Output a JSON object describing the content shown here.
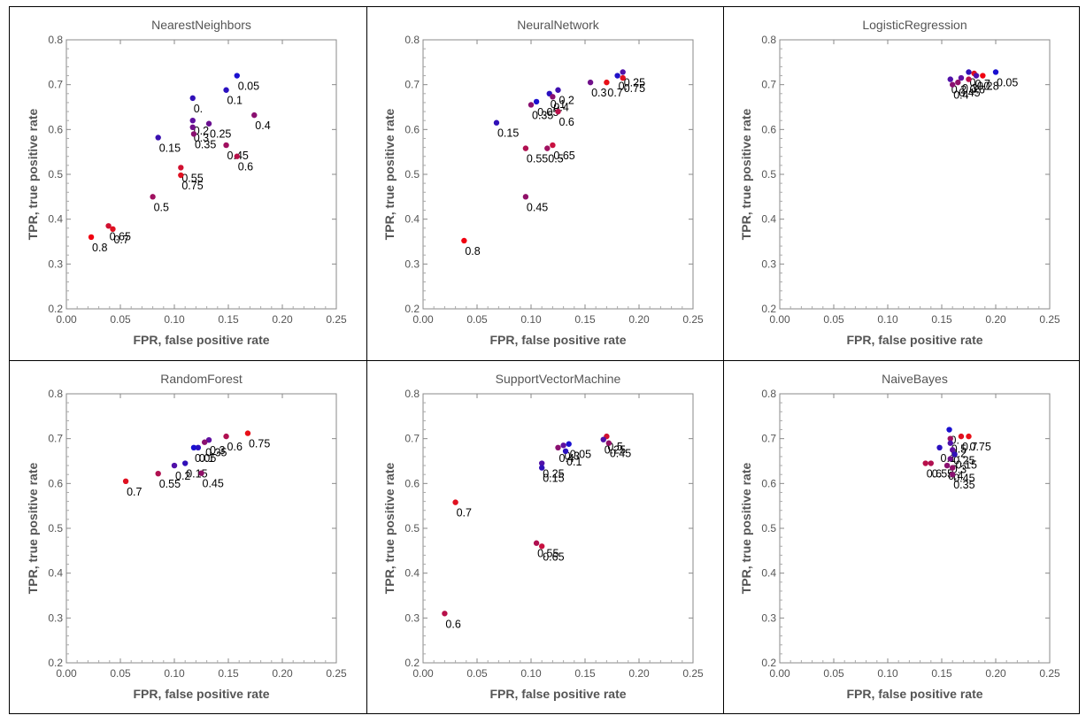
{
  "chart_data": [
    {
      "type": "scatter",
      "title": "NearestNeighbors",
      "xlabel": "FPR, false positive rate",
      "ylabel": "TPR, true positive rate",
      "xlim": [
        0.0,
        0.25
      ],
      "ylim": [
        0.2,
        0.8
      ],
      "xticks": [
        "0.00",
        "0.05",
        "0.10",
        "0.15",
        "0.20",
        "0.25"
      ],
      "yticks": [
        "0.2",
        "0.3",
        "0.4",
        "0.5",
        "0.6",
        "0.7",
        "0.8"
      ],
      "grid": false,
      "points": [
        {
          "x": 0.158,
          "y": 0.72,
          "label": "0.05",
          "color": "#1a10d0"
        },
        {
          "x": 0.148,
          "y": 0.688,
          "label": "0.1",
          "color": "#2a10c0"
        },
        {
          "x": 0.117,
          "y": 0.67,
          "label": "0.",
          "color": "#3010b8"
        },
        {
          "x": 0.117,
          "y": 0.62,
          "label": "0.2",
          "color": "#6010a0"
        },
        {
          "x": 0.132,
          "y": 0.613,
          "label": "0.25",
          "color": "#6a1090"
        },
        {
          "x": 0.174,
          "y": 0.632,
          "label": "0.4",
          "color": "#8a1070"
        },
        {
          "x": 0.117,
          "y": 0.605,
          "label": "0.3",
          "color": "#70108a"
        },
        {
          "x": 0.118,
          "y": 0.59,
          "label": "0.35",
          "color": "#8a1070"
        },
        {
          "x": 0.085,
          "y": 0.582,
          "label": "0.15",
          "color": "#3a10b0"
        },
        {
          "x": 0.148,
          "y": 0.565,
          "label": "0.45",
          "color": "#a01060"
        },
        {
          "x": 0.158,
          "y": 0.54,
          "label": "0.6",
          "color": "#b8104a"
        },
        {
          "x": 0.106,
          "y": 0.515,
          "label": "0.55",
          "color": "#d01030"
        },
        {
          "x": 0.106,
          "y": 0.498,
          "label": "0.75",
          "color": "#e01020"
        },
        {
          "x": 0.08,
          "y": 0.45,
          "label": "0.5",
          "color": "#a01060"
        },
        {
          "x": 0.039,
          "y": 0.385,
          "label": "0.65",
          "color": "#d01030"
        },
        {
          "x": 0.043,
          "y": 0.378,
          "label": "0.7",
          "color": "#e01020"
        },
        {
          "x": 0.023,
          "y": 0.36,
          "label": "0.8",
          "color": "#f00010"
        }
      ]
    },
    {
      "type": "scatter",
      "title": "NeuralNetwork",
      "xlabel": "FPR, false positive rate",
      "ylabel": "TPR, true positive rate",
      "xlim": [
        0.0,
        0.25
      ],
      "ylim": [
        0.2,
        0.8
      ],
      "xticks": [
        "0.00",
        "0.05",
        "0.10",
        "0.15",
        "0.20",
        "0.25"
      ],
      "yticks": [
        "0.2",
        "0.3",
        "0.4",
        "0.5",
        "0.6",
        "0.7",
        "0.8"
      ],
      "grid": false,
      "points": [
        {
          "x": 0.185,
          "y": 0.728,
          "label": "0.25",
          "color": "#5010a8"
        },
        {
          "x": 0.18,
          "y": 0.72,
          "label": "0.",
          "color": "#2010c8"
        },
        {
          "x": 0.185,
          "y": 0.715,
          "label": "0.75",
          "color": "#e01020"
        },
        {
          "x": 0.17,
          "y": 0.705,
          "label": "0.7",
          "color": "#e81018"
        },
        {
          "x": 0.155,
          "y": 0.705,
          "label": "0.3",
          "color": "#70108a"
        },
        {
          "x": 0.125,
          "y": 0.688,
          "label": "0.2",
          "color": "#4010b0"
        },
        {
          "x": 0.117,
          "y": 0.68,
          "label": "0.1",
          "color": "#2a10c0"
        },
        {
          "x": 0.12,
          "y": 0.673,
          "label": "0.4",
          "color": "#8a1070"
        },
        {
          "x": 0.105,
          "y": 0.662,
          "label": "0.05",
          "color": "#1a10d0"
        },
        {
          "x": 0.1,
          "y": 0.655,
          "label": "0.35",
          "color": "#8a1070"
        },
        {
          "x": 0.125,
          "y": 0.64,
          "label": "0.6",
          "color": "#b8104a"
        },
        {
          "x": 0.068,
          "y": 0.615,
          "label": "0.15",
          "color": "#3010b8"
        },
        {
          "x": 0.12,
          "y": 0.565,
          "label": "0.65",
          "color": "#c81040"
        },
        {
          "x": 0.115,
          "y": 0.558,
          "label": "0.5",
          "color": "#a01060"
        },
        {
          "x": 0.095,
          "y": 0.558,
          "label": "0.55",
          "color": "#b01050"
        },
        {
          "x": 0.095,
          "y": 0.45,
          "label": "0.45",
          "color": "#901068"
        },
        {
          "x": 0.038,
          "y": 0.352,
          "label": "0.8",
          "color": "#f00010"
        }
      ]
    },
    {
      "type": "scatter",
      "title": "LogisticRegression",
      "xlabel": "FPR, false positive rate",
      "ylabel": "TPR, true positive rate",
      "xlim": [
        0.0,
        0.25
      ],
      "ylim": [
        0.2,
        0.8
      ],
      "xticks": [
        "0.00",
        "0.05",
        "0.10",
        "0.15",
        "0.20",
        "0.25"
      ],
      "yticks": [
        "0.2",
        "0.3",
        "0.4",
        "0.5",
        "0.6",
        "0.7",
        "0.8"
      ],
      "grid": false,
      "points": [
        {
          "x": 0.2,
          "y": 0.728,
          "label": "0.05",
          "color": "#1a10d0"
        },
        {
          "x": 0.175,
          "y": 0.728,
          "label": "0.",
          "color": "#3010b8"
        },
        {
          "x": 0.18,
          "y": 0.725,
          "label": "0.7",
          "color": "#e01020"
        },
        {
          "x": 0.188,
          "y": 0.72,
          "label": "0.8",
          "color": "#f00010"
        },
        {
          "x": 0.182,
          "y": 0.72,
          "label": "0.2",
          "color": "#5010a8"
        },
        {
          "x": 0.168,
          "y": 0.715,
          "label": "0.3",
          "color": "#6010a0"
        },
        {
          "x": 0.175,
          "y": 0.712,
          "label": "0.6",
          "color": "#b8104a"
        },
        {
          "x": 0.158,
          "y": 0.712,
          "label": "0.2",
          "color": "#5010a8"
        },
        {
          "x": 0.16,
          "y": 0.7,
          "label": "0.4",
          "color": "#8a1070"
        },
        {
          "x": 0.165,
          "y": 0.705,
          "label": "0.45",
          "color": "#901068"
        }
      ]
    },
    {
      "type": "scatter",
      "title": "RandomForest",
      "xlabel": "FPR, false positive rate",
      "ylabel": "TPR, true positive rate",
      "xlim": [
        0.0,
        0.25
      ],
      "ylim": [
        0.2,
        0.8
      ],
      "xticks": [
        "0.00",
        "0.05",
        "0.10",
        "0.15",
        "0.20",
        "0.25"
      ],
      "yticks": [
        "0.2",
        "0.3",
        "0.4",
        "0.5",
        "0.6",
        "0.7",
        "0.8"
      ],
      "grid": false,
      "points": [
        {
          "x": 0.168,
          "y": 0.712,
          "label": "0.75",
          "color": "#e81018"
        },
        {
          "x": 0.148,
          "y": 0.705,
          "label": "0.6",
          "color": "#b01050"
        },
        {
          "x": 0.132,
          "y": 0.697,
          "label": "0.3",
          "color": "#6010a0"
        },
        {
          "x": 0.128,
          "y": 0.692,
          "label": "0.35",
          "color": "#8a1070"
        },
        {
          "x": 0.122,
          "y": 0.68,
          "label": "0.1",
          "color": "#2a10c0"
        },
        {
          "x": 0.118,
          "y": 0.68,
          "label": "0.05",
          "color": "#1a10d0"
        },
        {
          "x": 0.11,
          "y": 0.645,
          "label": "0.15",
          "color": "#3010b8"
        },
        {
          "x": 0.1,
          "y": 0.64,
          "label": "0.2",
          "color": "#5010a8"
        },
        {
          "x": 0.125,
          "y": 0.623,
          "label": "0.45",
          "color": "#901068"
        },
        {
          "x": 0.085,
          "y": 0.622,
          "label": "0.55",
          "color": "#b01050"
        },
        {
          "x": 0.055,
          "y": 0.605,
          "label": "0.7",
          "color": "#e01020"
        }
      ]
    },
    {
      "type": "scatter",
      "title": "SupportVectorMachine",
      "xlabel": "FPR, false positive rate",
      "ylabel": "TPR, true positive rate",
      "xlim": [
        0.0,
        0.25
      ],
      "ylim": [
        0.2,
        0.8
      ],
      "xticks": [
        "0.00",
        "0.05",
        "0.10",
        "0.15",
        "0.20",
        "0.25"
      ],
      "yticks": [
        "0.2",
        "0.3",
        "0.4",
        "0.5",
        "0.6",
        "0.7",
        "0.8"
      ],
      "grid": false,
      "points": [
        {
          "x": 0.17,
          "y": 0.705,
          "label": "0.5",
          "color": "#d01030"
        },
        {
          "x": 0.167,
          "y": 0.698,
          "label": "0.25",
          "color": "#5010a8"
        },
        {
          "x": 0.172,
          "y": 0.69,
          "label": "0.45",
          "color": "#901068"
        },
        {
          "x": 0.135,
          "y": 0.688,
          "label": "0.05",
          "color": "#1a10d0"
        },
        {
          "x": 0.13,
          "y": 0.685,
          "label": "0.3",
          "color": "#6010a0"
        },
        {
          "x": 0.125,
          "y": 0.68,
          "label": "0.4",
          "color": "#8a1070"
        },
        {
          "x": 0.132,
          "y": 0.672,
          "label": "0.1",
          "color": "#2a10c0"
        },
        {
          "x": 0.11,
          "y": 0.645,
          "label": "0.25",
          "color": "#5010a8"
        },
        {
          "x": 0.11,
          "y": 0.635,
          "label": "0.15",
          "color": "#3010b8"
        },
        {
          "x": 0.03,
          "y": 0.558,
          "label": "0.7",
          "color": "#e01020"
        },
        {
          "x": 0.105,
          "y": 0.467,
          "label": "0.55",
          "color": "#b01050"
        },
        {
          "x": 0.11,
          "y": 0.46,
          "label": "0.65",
          "color": "#c81040"
        },
        {
          "x": 0.02,
          "y": 0.31,
          "label": "0.6",
          "color": "#b8104a"
        }
      ]
    },
    {
      "type": "scatter",
      "title": "NaiveBayes",
      "xlabel": "FPR, false positive rate",
      "ylabel": "TPR, true positive rate",
      "xlim": [
        0.0,
        0.25
      ],
      "ylim": [
        0.2,
        0.8
      ],
      "xticks": [
        "0.00",
        "0.05",
        "0.10",
        "0.15",
        "0.20",
        "0.25"
      ],
      "yticks": [
        "0.2",
        "0.3",
        "0.4",
        "0.5",
        "0.6",
        "0.7",
        "0.8"
      ],
      "grid": false,
      "points": [
        {
          "x": 0.157,
          "y": 0.72,
          "label": "0.",
          "color": "#1a10d0"
        },
        {
          "x": 0.175,
          "y": 0.705,
          "label": "0.75",
          "color": "#e81018"
        },
        {
          "x": 0.168,
          "y": 0.705,
          "label": "0.7",
          "color": "#e01020"
        },
        {
          "x": 0.158,
          "y": 0.7,
          "label": "0.5",
          "color": "#a01060"
        },
        {
          "x": 0.158,
          "y": 0.69,
          "label": "0.2",
          "color": "#5010a8"
        },
        {
          "x": 0.148,
          "y": 0.68,
          "label": "0.1",
          "color": "#2a10c0"
        },
        {
          "x": 0.16,
          "y": 0.675,
          "label": "0.25",
          "color": "#6010a0"
        },
        {
          "x": 0.162,
          "y": 0.665,
          "label": "0.15",
          "color": "#3010b8"
        },
        {
          "x": 0.158,
          "y": 0.655,
          "label": "0.3",
          "color": "#70108a"
        },
        {
          "x": 0.14,
          "y": 0.645,
          "label": "0.55",
          "color": "#b01050"
        },
        {
          "x": 0.135,
          "y": 0.645,
          "label": "0.6",
          "color": "#b8104a"
        },
        {
          "x": 0.155,
          "y": 0.64,
          "label": "0.4",
          "color": "#8a1070"
        },
        {
          "x": 0.16,
          "y": 0.635,
          "label": "0.45",
          "color": "#901068"
        },
        {
          "x": 0.16,
          "y": 0.62,
          "label": "0.35",
          "color": "#8a1070"
        }
      ]
    }
  ]
}
